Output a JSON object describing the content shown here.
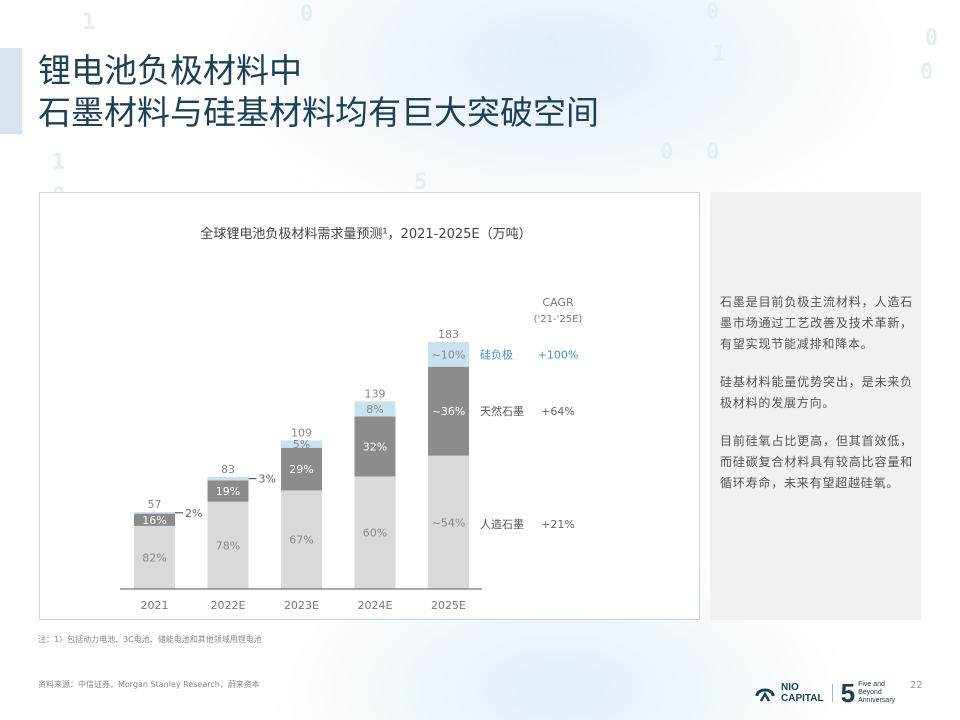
{
  "slide": {
    "title_line1": "锂电池负极材料中",
    "title_line2": "石墨材料与硅基材料均有巨大突破空间",
    "page_number": "22"
  },
  "side_panel": {
    "paragraphs": [
      "石墨是目前负极主流材料，人造石墨市场通过工艺改善及技术革新，有望实现节能减排和降本。",
      "硅基材料能量优势突出，是未来负极材料的发展方向。",
      "目前硅氧占比更高，但其首效低，而硅碳复合材料具有较高比容量和循环寿命，未来有望超越硅氧。"
    ]
  },
  "footer": {
    "note": "注：1）包括动力电池、3C电池、储能电池和其他领域用锂电池",
    "source": "资料来源：中信证券，Morgan Stanley Research，蔚来资本"
  },
  "logo": {
    "name_line1": "NIO",
    "name_line2": "CAPITAL",
    "five": "5",
    "tag_line1": "Five and",
    "tag_line2": "Beyond",
    "tag_line3": "Anniversary"
  },
  "chart_data": {
    "type": "bar",
    "stacked": true,
    "title": "全球锂电池负极材料需求量预测¹，2021-2025E（万吨）",
    "categories": [
      "2021",
      "2022E",
      "2023E",
      "2024E",
      "2025E"
    ],
    "totals": [
      57,
      83,
      109,
      139,
      183
    ],
    "series": [
      {
        "name": "人造石墨",
        "color": "#d9d9d9",
        "shares": [
          0.82,
          0.78,
          0.67,
          0.6,
          0.54
        ],
        "labels": [
          "82%",
          "78%",
          "67%",
          "60%",
          "~54%"
        ],
        "cagr": "+21%"
      },
      {
        "name": "天然石墨",
        "color": "#8c8c8c",
        "shares": [
          0.16,
          0.19,
          0.29,
          0.32,
          0.36
        ],
        "labels": [
          "16%",
          "19%",
          "29%",
          "32%",
          "~36%"
        ],
        "cagr": "+64%"
      },
      {
        "name": "硅负极",
        "color": "#c9e2ef",
        "shares": [
          0.02,
          0.03,
          0.05,
          0.08,
          0.1
        ],
        "labels": [
          "2%",
          "3%",
          "5%",
          "8%",
          "~10%"
        ],
        "cagr": "+100%"
      }
    ],
    "cagr_header": "CAGR",
    "cagr_period": "('21-'25E)",
    "silicon_label_color": "#4a90c2",
    "ylim": [
      0,
      190
    ],
    "grid": false,
    "legend": "right, labels beside 2025E bar"
  }
}
